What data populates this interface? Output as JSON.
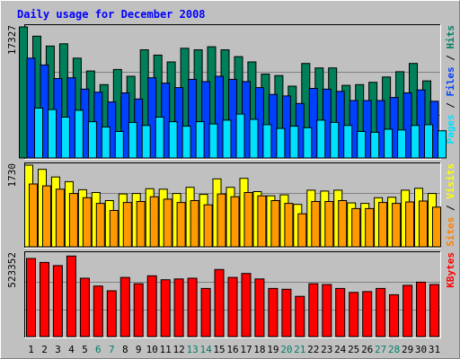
{
  "chart_data": {
    "title": "Daily usage for December 2008",
    "categories": [
      "1",
      "2",
      "3",
      "4",
      "5",
      "6",
      "7",
      "8",
      "9",
      "10",
      "11",
      "12",
      "13",
      "14",
      "15",
      "16",
      "17",
      "18",
      "19",
      "20",
      "21",
      "22",
      "23",
      "24",
      "25",
      "26",
      "27",
      "28",
      "29",
      "30",
      "31"
    ],
    "weekend_days": [
      "6",
      "7",
      "13",
      "14",
      "20",
      "21",
      "27",
      "28"
    ],
    "charts": [
      {
        "type": "bar",
        "ymax_label": "17327",
        "ylim": [
          0,
          17327
        ],
        "right_labels": [
          {
            "text": "Pages",
            "color": "#00e0ff"
          },
          {
            "text": "Files",
            "color": "#0040ff"
          },
          {
            "text": "Hits",
            "color": "#008060"
          }
        ],
        "separator": " / ",
        "series": [
          {
            "name": "Hits",
            "color": "#00805a",
            "values": [
              17327,
              16100,
              14800,
              15100,
              13200,
              11500,
              9700,
              11700,
              10800,
              14300,
              13600,
              12700,
              14500,
              14300,
              14700,
              14300,
              13400,
              12700,
              11100,
              10900,
              9500,
              12500,
              11900,
              11900,
              9600,
              9700,
              10000,
              10700,
              11400,
              12500,
              10200
            ]
          },
          {
            "name": "Files",
            "color": "#0040ff",
            "values": [
              13200,
              12300,
              10500,
              10600,
              9100,
              8700,
              7400,
              8600,
              7800,
              10600,
              9900,
              9300,
              10400,
              10100,
              10800,
              10400,
              10100,
              9300,
              8400,
              8200,
              7200,
              9200,
              9100,
              8800,
              7600,
              7600,
              7600,
              8000,
              8600,
              9000,
              7500
            ]
          },
          {
            "name": "Pages",
            "color": "#00e0ff",
            "values": [
              6600,
              6400,
              5400,
              6300,
              4800,
              4100,
              3500,
              4700,
              4300,
              5400,
              4800,
              4200,
              4800,
              4500,
              5000,
              5800,
              5100,
              4400,
              3900,
              4200,
              4000,
              5000,
              4700,
              4300,
              3500,
              3400,
              3800,
              3700,
              4300,
              4400,
              3600
            ]
          }
        ]
      },
      {
        "type": "bar",
        "ymax_label": "1730",
        "ylim": [
          0,
          1730
        ],
        "right_labels": [
          {
            "text": "Sites",
            "color": "#ff8000"
          },
          {
            "text": "Visits",
            "color": "#ffff00"
          }
        ],
        "separator": " / ",
        "series": [
          {
            "name": "Visits",
            "color": "#ffff00",
            "values": [
              1730,
              1640,
              1480,
              1380,
              1210,
              1150,
              980,
              1120,
              1130,
              1230,
              1220,
              1130,
              1260,
              1110,
              1440,
              1260,
              1450,
              1170,
              1080,
              1100,
              900,
              1200,
              1180,
              1200,
              930,
              920,
              1040,
              1050,
              1200,
              1240,
              1130
            ]
          },
          {
            "name": "Sites",
            "color": "#ff9900",
            "values": [
              1330,
              1290,
              1220,
              1130,
              1040,
              920,
              770,
              940,
              960,
              1060,
              1010,
              940,
              980,
              890,
              1120,
              1060,
              1150,
              1080,
              980,
              920,
              700,
              960,
              960,
              980,
              810,
              810,
              940,
              920,
              950,
              970,
              840
            ]
          }
        ]
      },
      {
        "type": "bar",
        "ymax_label": "523352",
        "ylim": [
          0,
          523352
        ],
        "right_labels": [
          {
            "text": "KBytes",
            "color": "#ff0000"
          }
        ],
        "separator": "",
        "series": [
          {
            "name": "KBytes",
            "color": "#ff0000",
            "values": [
              495000,
              470000,
              450000,
              510000,
              370000,
              320000,
              290000,
              375000,
              335000,
              385000,
              360000,
              365000,
              370000,
              305000,
              425000,
              375000,
              400000,
              365000,
              305000,
              300000,
              255000,
              335000,
              330000,
              305000,
              280000,
              285000,
              305000,
              265000,
              325000,
              345000,
              330000
            ]
          }
        ]
      }
    ]
  }
}
